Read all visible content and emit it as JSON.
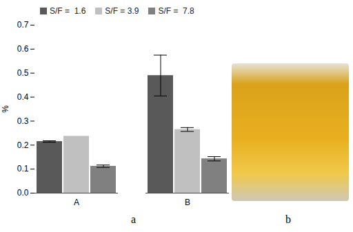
{
  "chart_data": {
    "type": "bar",
    "y_label": "%",
    "categories": [
      "A",
      "B"
    ],
    "series": [
      {
        "name": "S/F =  1.6",
        "color": "#595959",
        "values": [
          0.215,
          0.49
        ],
        "errors": [
          0.003,
          0.085
        ]
      },
      {
        "name": "S/F = 3.9",
        "color": "#c0c0c0",
        "values": [
          0.237,
          0.265
        ],
        "errors": [
          null,
          0.008
        ]
      },
      {
        "name": "S/F =  7.8",
        "color": "#808080",
        "values": [
          0.112,
          0.143
        ],
        "errors": [
          0.005,
          0.009
        ]
      }
    ],
    "ylim": [
      0,
      0.7
    ],
    "yticks": [
      {
        "value": 0,
        "label": "0.0"
      },
      {
        "value": 0.1,
        "label": "0.1"
      },
      {
        "value": 0.2,
        "label": "0.2"
      },
      {
        "value": 0.3,
        "label": "0.3"
      },
      {
        "value": 0.4,
        "label": "0.4"
      },
      {
        "value": 0.5,
        "label": "0.5"
      },
      {
        "value": 0.6,
        "label": "0.6"
      },
      {
        "value": 0.7,
        "label": "0.7"
      }
    ],
    "grid": false,
    "legend": "top",
    "annotations": [
      "a",
      "b"
    ]
  }
}
